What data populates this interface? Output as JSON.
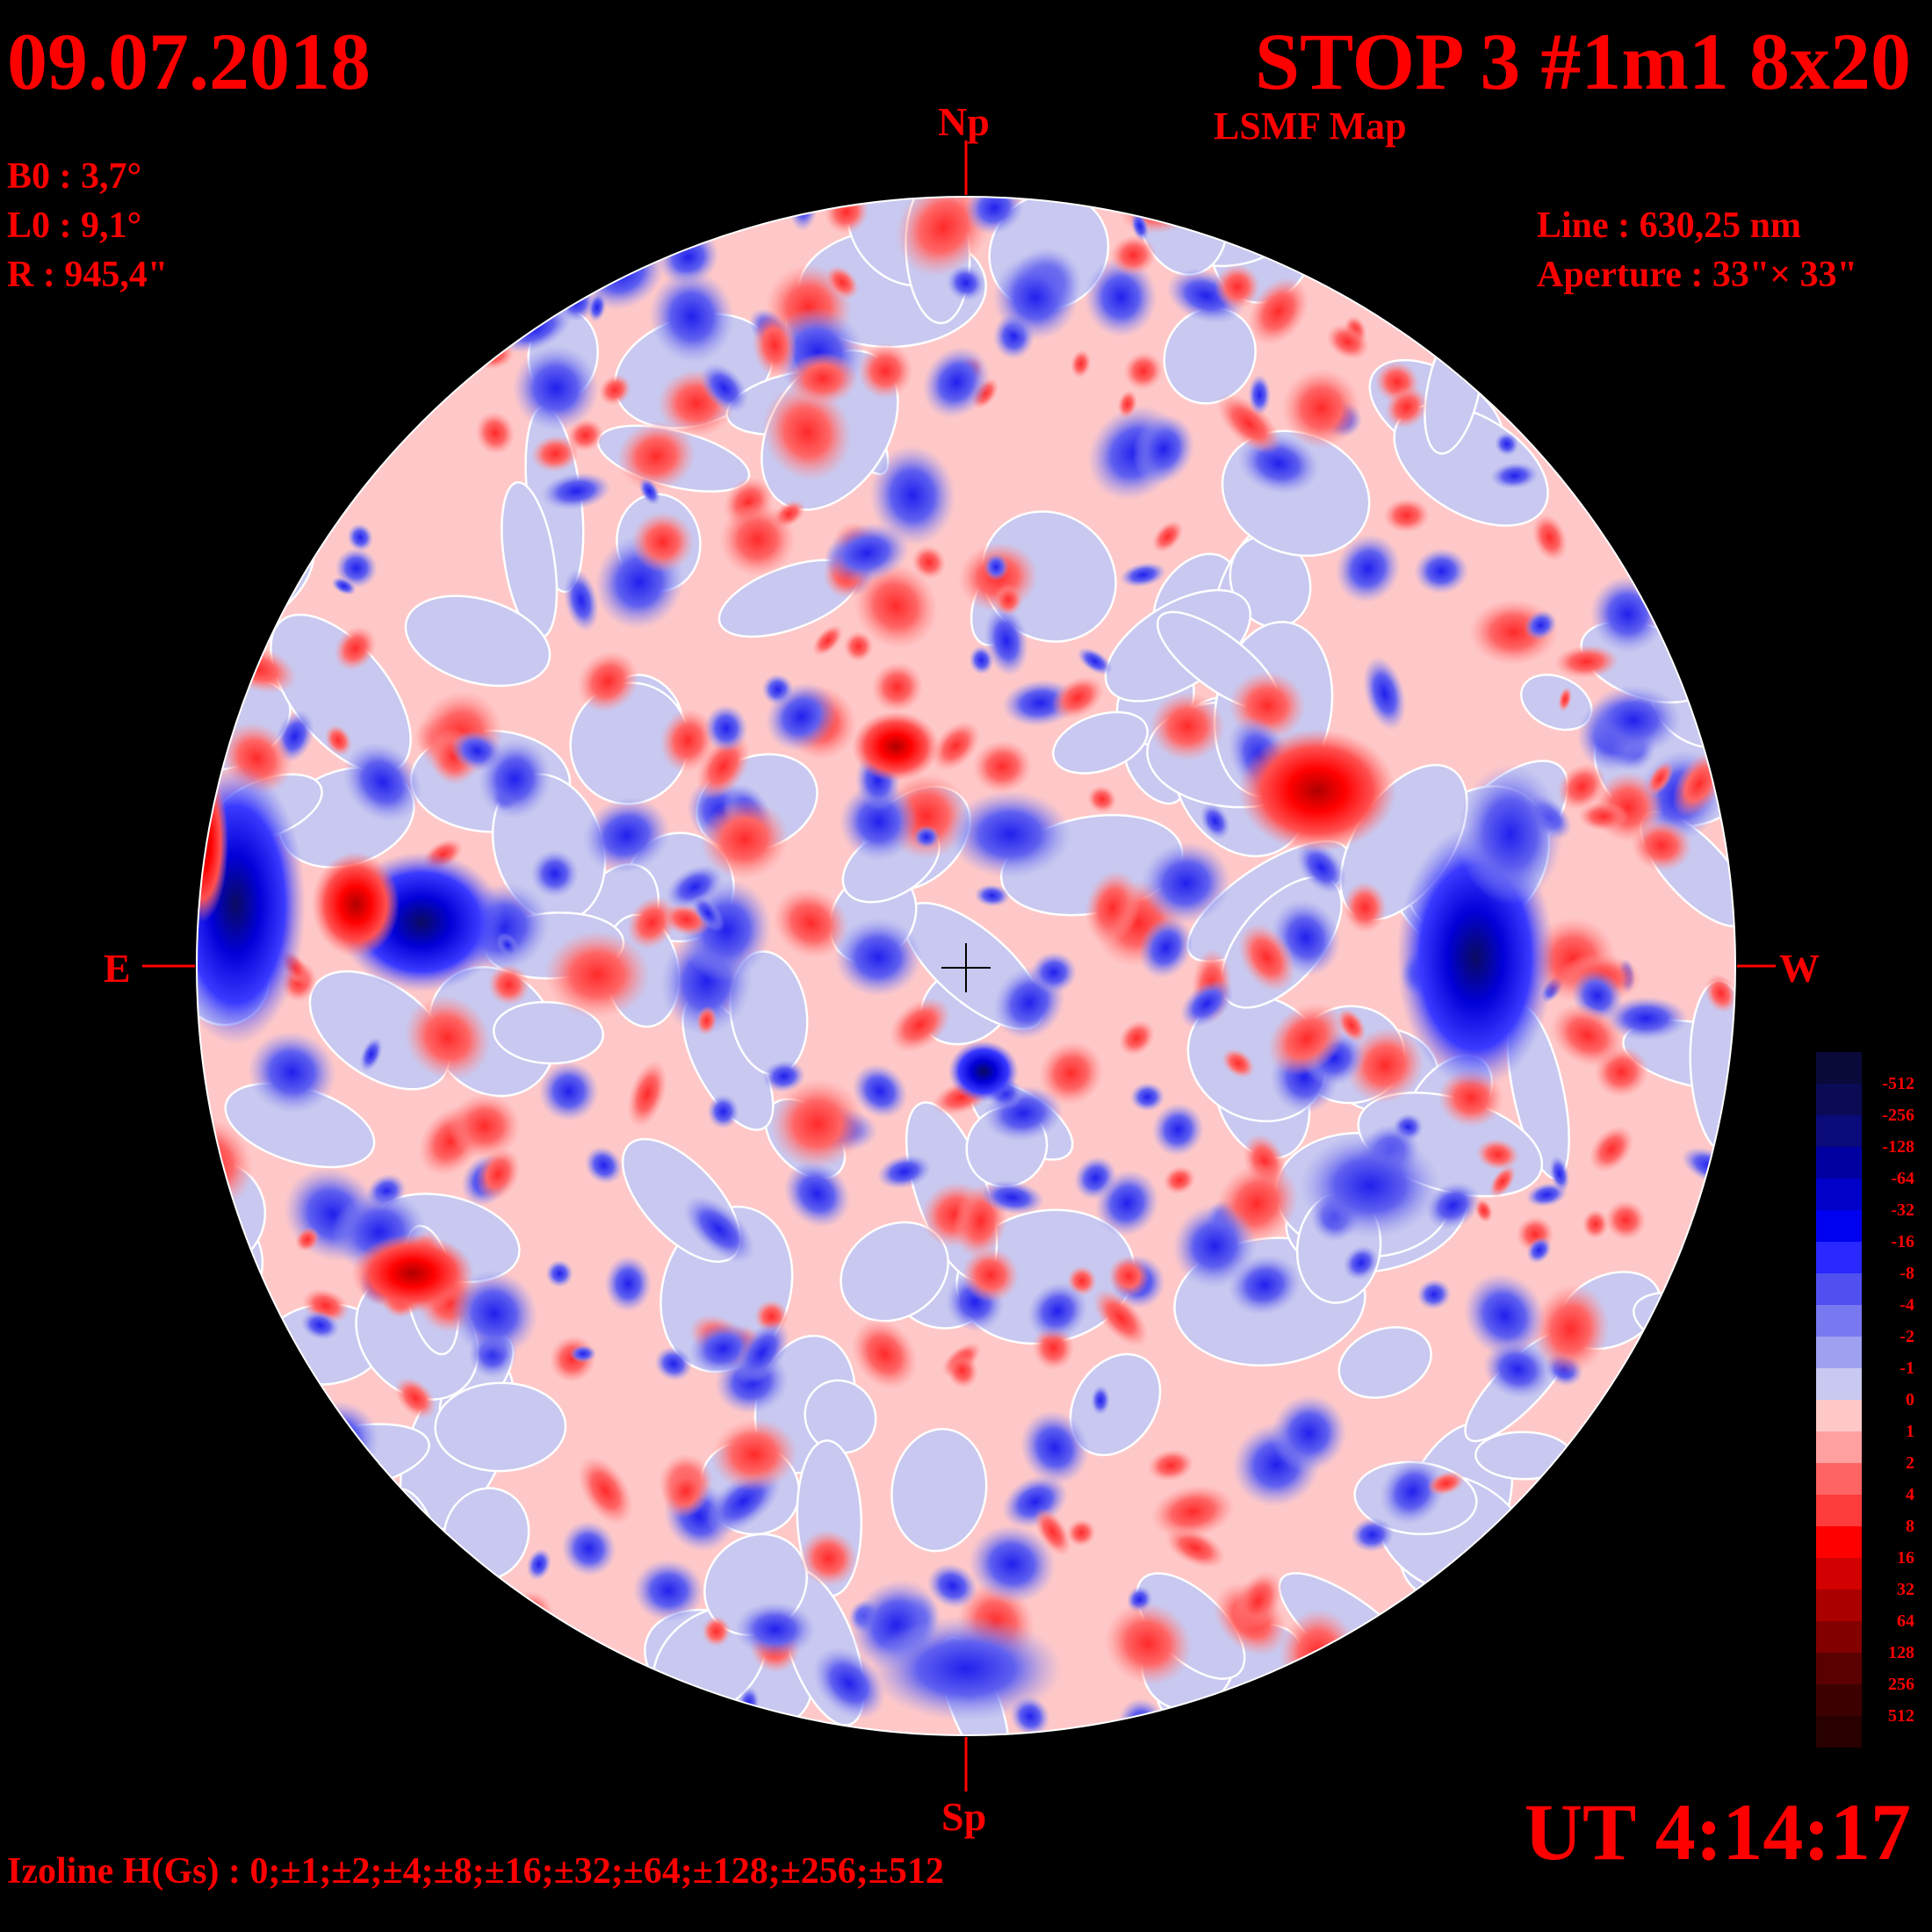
{
  "header": {
    "date": "09.07.2018",
    "title": "STOP 3 #1m1 8x20",
    "subtitle": "LSMF  Map"
  },
  "params": {
    "b0": "B0 : 3,7°",
    "l0": "L0 : 9,1°",
    "r": "R  : 945,4\"",
    "line": "Line :  630,25 nm",
    "aperture": "Aperture : 33\"× 33\""
  },
  "directions": {
    "north": "Np",
    "south": "Sp",
    "east": "E",
    "west": "W"
  },
  "time": "UT 4:14:17",
  "izoline": "Izoline H(Gs) : 0;±1;±2;±4;±8;±16;±32;±64;±128;±256;±512",
  "colors": {
    "negative_strong": "#0a0a40",
    "negative_mid": "#0000ff",
    "negative_weak": "#c8c8f0",
    "positive_weak": "#ffc8c8",
    "positive_mid": "#ff0000",
    "positive_strong": "#2a0000",
    "contour": "#ffffff"
  },
  "legend": {
    "levels": [
      {
        "label": "-512",
        "color": "#0a0a3a"
      },
      {
        "label": "-256",
        "color": "#0b0b55"
      },
      {
        "label": "-128",
        "color": "#0a0a7a"
      },
      {
        "label": "-64",
        "color": "#0000a0"
      },
      {
        "label": "-32",
        "color": "#0000c8"
      },
      {
        "label": "-16",
        "color": "#0000f0"
      },
      {
        "label": "-8",
        "color": "#2828ff"
      },
      {
        "label": "-4",
        "color": "#5050f0"
      },
      {
        "label": "-2",
        "color": "#7878f0"
      },
      {
        "label": "-1",
        "color": "#a0a0f0"
      },
      {
        "label": "0",
        "color": "#c8c8f0"
      },
      {
        "label": "1",
        "color": "#ffc8c8"
      },
      {
        "label": "2",
        "color": "#ffa0a0"
      },
      {
        "label": "4",
        "color": "#ff6464"
      },
      {
        "label": "8",
        "color": "#ff3c3c"
      },
      {
        "label": "16",
        "color": "#ff0000"
      },
      {
        "label": "32",
        "color": "#d20000"
      },
      {
        "label": "64",
        "color": "#aa0000"
      },
      {
        "label": "128",
        "color": "#820000"
      },
      {
        "label": "256",
        "color": "#5a0000"
      },
      {
        "label": "512",
        "color": "#3c0000"
      },
      {
        "label": "",
        "color": "#280000"
      }
    ]
  }
}
